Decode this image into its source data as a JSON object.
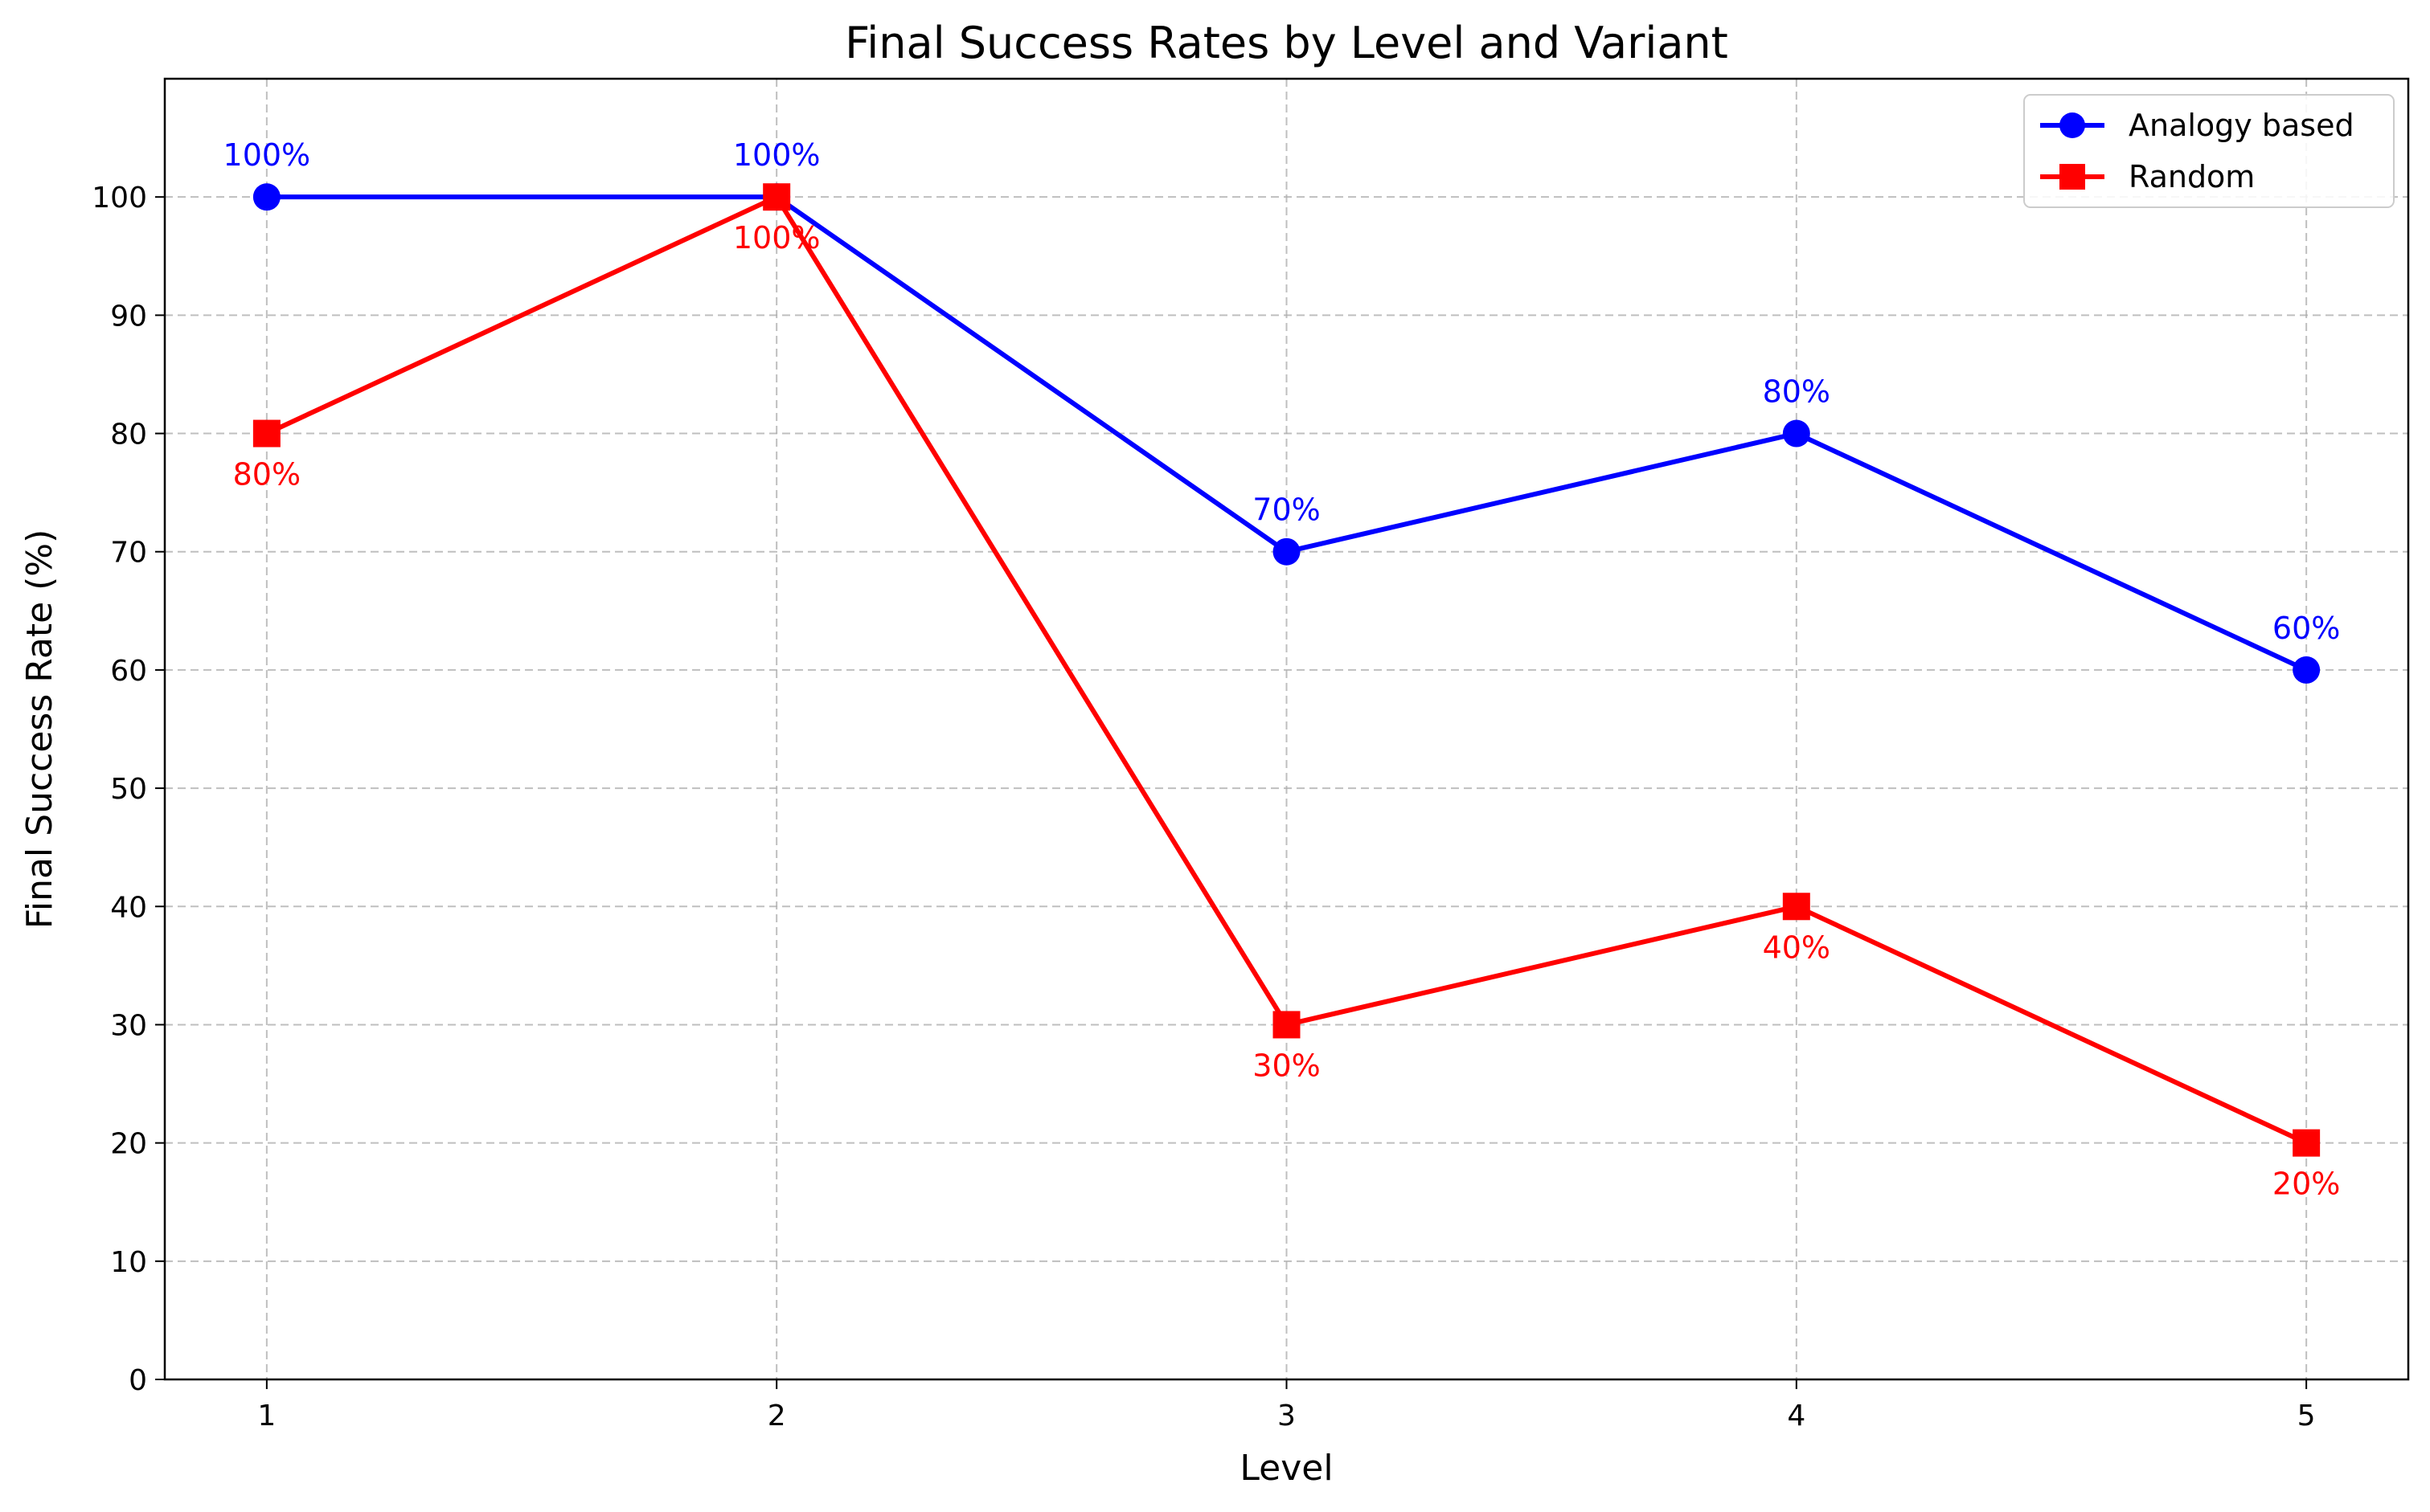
{
  "chart_data": {
    "type": "line",
    "title": "Final Success Rates by Level and Variant",
    "xlabel": "Level",
    "ylabel": "Final Success Rate (%)",
    "x": [
      1,
      2,
      3,
      4,
      5
    ],
    "x_ticks": [
      "1",
      "2",
      "3",
      "4",
      "5"
    ],
    "xlim": [
      0.8,
      5.2
    ],
    "ylim": [
      0,
      110
    ],
    "y_ticks": [
      "0",
      "10",
      "20",
      "30",
      "40",
      "50",
      "60",
      "70",
      "80",
      "90",
      "100"
    ],
    "grid": true,
    "legend_position": "top-right",
    "series": [
      {
        "name": "Analogy based",
        "values": [
          100,
          100,
          70,
          80,
          60
        ],
        "labels": [
          "100%",
          "100%",
          "70%",
          "80%",
          "60%"
        ],
        "label_placement": "above",
        "color": "#0000ff",
        "marker": "circle"
      },
      {
        "name": "Random",
        "values": [
          80,
          100,
          30,
          40,
          20
        ],
        "labels": [
          "80%",
          "100%",
          "30%",
          "40%",
          "20%"
        ],
        "label_placement": "below",
        "color": "#ff0000",
        "marker": "square"
      }
    ]
  }
}
